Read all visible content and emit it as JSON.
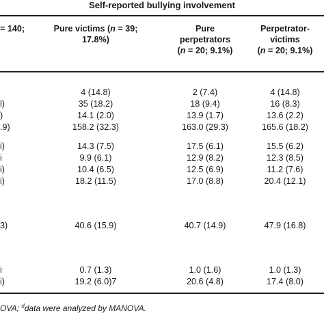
{
  "table": {
    "group_header": "Self-reported bullying involvement",
    "columns": [
      {
        "lines": [
          "= 140;",
          ""
        ]
      },
      {
        "lines": [
          "Pure victims (n = 39;",
          "17.8%)"
        ]
      },
      {
        "lines": [
          "Pure",
          "perpetrators",
          "(n = 20; 9.1%)"
        ]
      },
      {
        "lines": [
          "Perpetrator-",
          "victims",
          "(n = 20; 9.1%)"
        ]
      }
    ],
    "rows": [
      {
        "cut": "",
        "cells": [
          "4 (14.8)",
          "2 (7.4)",
          "4 (14.8)"
        ]
      },
      {
        "cut": "l)",
        "cells": [
          "35 (18.2)",
          "18 (9.4)",
          "16 (8.3)"
        ]
      },
      {
        "cut": ")",
        "cells": [
          "14.1 (2.0)",
          "13.9 (1.7)",
          "13.6 (2.2)"
        ]
      },
      {
        "cut": ".9)",
        "cells": [
          "158.2 (32.3)",
          "163.0 (29.3)",
          "165.6 (18.2)"
        ]
      },
      {
        "cut": "i)",
        "cells": [
          "14.3 (7.5)",
          "17.5 (6.1)",
          "15.5 (6.2)"
        ]
      },
      {
        "cut": "i",
        "cells": [
          "9.9 (6.1)",
          "12.9 (8.2)",
          "12.3 (8.5)"
        ]
      },
      {
        "cut": "i)",
        "cells": [
          "10.4 (6.5)",
          "12.5 (6.9)",
          "11.2 (7.6)"
        ]
      },
      {
        "cut": "i)",
        "cells": [
          "18.2 (11.5)",
          "17.0 (8.8)",
          "20.4 (12.1)"
        ]
      },
      {
        "cut": "3)",
        "cells": [
          "40.6 (15.9)",
          "40.7 (14.9)",
          "47.9 (16.8)"
        ]
      },
      {
        "cut": "i",
        "cells": [
          "0.7 (1.3)",
          "1.0 (1.6)",
          "1.0 (1.3)"
        ]
      },
      {
        "cut": "i)",
        "cells": [
          "19.2 (6.0)7",
          "20.6 (4.8)",
          "17.4 (8.0)"
        ]
      }
    ]
  },
  "footnote": {
    "part1": "OVA; ",
    "sup": "d",
    "part2": "data were analyzed by MANOVA."
  }
}
